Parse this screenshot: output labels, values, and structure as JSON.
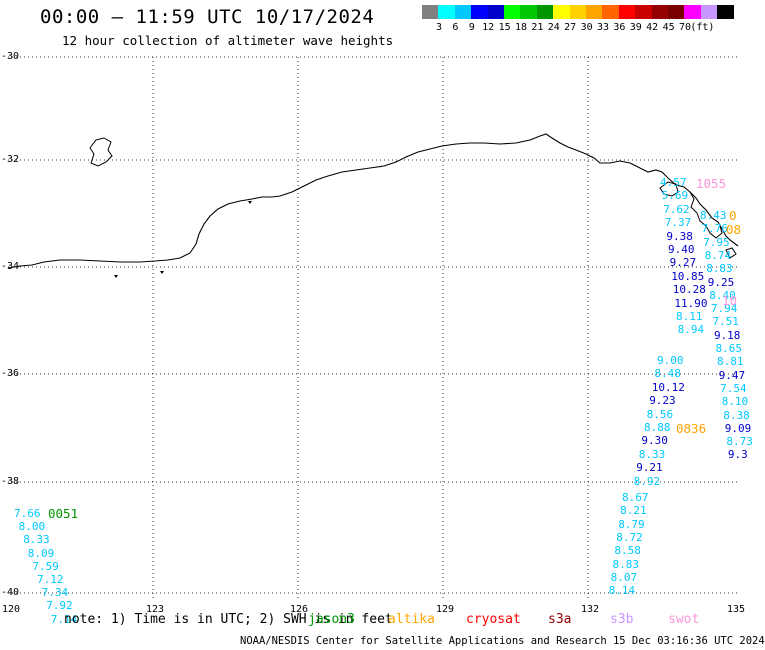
{
  "title": "00:00 – 11:59 UTC 10/17/2024",
  "subtitle": "12 hour collection of altimeter wave heights",
  "legend": {
    "unit_label": "(ft)",
    "colors": [
      "#808080",
      "#00ffff",
      "#00c8ff",
      "#0000ff",
      "#0000c8",
      "#00ff00",
      "#00c800",
      "#009600",
      "#ffff00",
      "#ffd200",
      "#ffa500",
      "#ff6400",
      "#ff0000",
      "#c80000",
      "#960000",
      "#780000",
      "#ff00ff",
      "#c896ff",
      "#000000"
    ],
    "labels": [
      "3",
      "6",
      "9",
      "12",
      "15",
      "18",
      "21",
      "24",
      "27",
      "30",
      "33",
      "36",
      "39",
      "42",
      "45",
      "70"
    ]
  },
  "map": {
    "lat_labels": [
      "-30",
      "-32",
      "-34",
      "-36",
      "-38",
      "-40"
    ],
    "lon_labels": [
      "120",
      "123",
      "126",
      "129",
      "132",
      "135"
    ]
  },
  "tracks": [
    {
      "time_label": "0051",
      "time_color": "#009600",
      "values": [
        "7.66",
        "8.00",
        "8.33",
        "8.09",
        "7.59",
        "7.12",
        "7.34",
        "7.92",
        "7.14"
      ],
      "colors": [
        "#00c8ff",
        "#00c8ff",
        "#00c8ff",
        "#00c8ff",
        "#00c8ff",
        "#00c8ff",
        "#00c8ff",
        "#00c8ff",
        "#00c8ff"
      ]
    },
    {
      "time_label": "",
      "time_color": "",
      "values": [
        "8.67",
        "8.21",
        "8.79",
        "8.72",
        "8.58",
        "8.83",
        "8.07",
        "8.14"
      ],
      "colors": [
        "#00c8ff",
        "#00c8ff",
        "#00c8ff",
        "#00c8ff",
        "#00c8ff",
        "#00c8ff",
        "#00c8ff",
        "#00c8ff"
      ]
    },
    {
      "time_label": "0836",
      "time_color": "#ffa500",
      "values": [
        "9.00",
        "8.48",
        "10.12",
        "9.23",
        "8.56",
        "8.88",
        "9.30",
        "8.33",
        "9.21",
        "8.92"
      ],
      "colors": [
        "#00c8ff",
        "#00c8ff",
        "#0000c8",
        "#0000c8",
        "#00c8ff",
        "#00c8ff",
        "#0000c8",
        "#00c8ff",
        "#0000c8",
        "#00c8ff"
      ]
    },
    {
      "time_label": "1055",
      "time_color": "#ff96dc",
      "values": [
        "4.57",
        "5.69",
        "7.62",
        "7.37",
        "9.38",
        "9.40",
        "9.27",
        "10.85",
        "10.28",
        "11.90",
        "8.11",
        "8.94"
      ],
      "colors": [
        "#00c8ff",
        "#00c8ff",
        "#00c8ff",
        "#00c8ff",
        "#0000c8",
        "#0000c8",
        "#0000c8",
        "#0000c8",
        "#0000c8",
        "#0000c8",
        "#00c8ff",
        "#00c8ff"
      ]
    },
    {
      "time_label": "",
      "time_color": "",
      "values": [
        "8.43",
        "7.76",
        "7.95",
        "8.74",
        "8.83",
        "9.25",
        "8.40",
        "7.94",
        "7.51",
        "9.18",
        "8.65",
        "8.81",
        "9.47",
        "7.54",
        "8.10",
        "8.38",
        "9.09",
        "8.73",
        "9.3"
      ],
      "colors": [
        "#00c8ff",
        "#00c8ff",
        "#00c8ff",
        "#00c8ff",
        "#00c8ff",
        "#0000c8",
        "#00c8ff",
        "#00c8ff",
        "#00c8ff",
        "#0000c8",
        "#00c8ff",
        "#00c8ff",
        "#0000c8",
        "#00c8ff",
        "#00c8ff",
        "#00c8ff",
        "#0000c8",
        "#00c8ff",
        "#0000c8"
      ]
    }
  ],
  "edge_labels": [
    {
      "text": "0",
      "color": "#ffa500"
    },
    {
      "text": "08",
      "color": "#ffa500"
    },
    {
      "text": "10",
      "color": "#ff96dc"
    }
  ],
  "footer": {
    "note": "note:  1) Time is in UTC; 2) SWH is in feet",
    "satellites": [
      {
        "name": "jason3",
        "color": "#009600"
      },
      {
        "name": "altika",
        "color": "#ffa500"
      },
      {
        "name": "cryosat",
        "color": "#ff0000"
      },
      {
        "name": "s3a",
        "color": "#960000"
      },
      {
        "name": "s3b",
        "color": "#c896ff"
      },
      {
        "name": "swot",
        "color": "#ff96dc"
      }
    ],
    "credit": "NOAA/NESDIS Center for Satellite Applications and Research    15 Dec 03:16:36 UTC 2024"
  }
}
